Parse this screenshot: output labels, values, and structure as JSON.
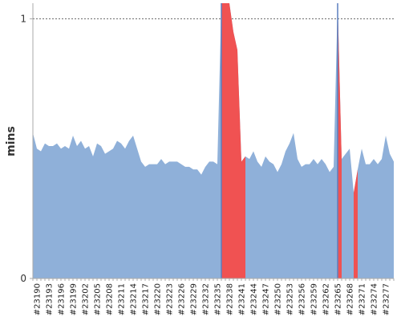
{
  "chart_data": {
    "type": "area",
    "ylabel": "mins",
    "xlabel": "",
    "title": "",
    "ylim": [
      0,
      1.06
    ],
    "y_ticks": [
      {
        "value": 0,
        "label": "0"
      },
      {
        "value": 1,
        "label": "1"
      }
    ],
    "grid": "dashed line at y=1",
    "colors": {
      "base": "#8fb0d9",
      "highlight": "#f05252",
      "spike_line": "#5b7fbf",
      "axis": "#aaaaaa",
      "grid": "#666666"
    },
    "x_first": 23189,
    "x_last": 23279,
    "x_tick_labels": [
      "#23190",
      "#23193",
      "#23196",
      "#23199",
      "#23202",
      "#23205",
      "#23208",
      "#23211",
      "#23214",
      "#23217",
      "#23220",
      "#23223",
      "#23226",
      "#23229",
      "#23232",
      "#23235",
      "#23238",
      "#23241",
      "#23244",
      "#23247",
      "#23250",
      "#23253",
      "#23256",
      "#23259",
      "#23262",
      "#23265",
      "#23268",
      "#23271",
      "#23274",
      "#23277"
    ],
    "series": [
      {
        "x": [
          23189,
          23190,
          23191,
          23192,
          23193,
          23194,
          23195,
          23196,
          23197,
          23198,
          23199,
          23200,
          23201,
          23202,
          23203,
          23204,
          23205,
          23206,
          23207,
          23208,
          23209,
          23210,
          23211,
          23212,
          23213,
          23214,
          23215,
          23216,
          23217,
          23218,
          23219,
          23220,
          23221,
          23222,
          23223,
          23224,
          23225,
          23226,
          23227,
          23228,
          23229,
          23230,
          23231,
          23232,
          23233,
          23234,
          23235,
          23236,
          23237,
          23238,
          23239,
          23240,
          23241,
          23242,
          23243,
          23244,
          23245,
          23246,
          23247,
          23248,
          23249,
          23250,
          23251,
          23252,
          23253,
          23254,
          23255,
          23256,
          23257,
          23258,
          23259,
          23260,
          23261,
          23262,
          23263,
          23264,
          23265,
          23266,
          23267,
          23268,
          23269,
          23270,
          23271,
          23272,
          23273,
          23274,
          23275,
          23276,
          23277,
          23278,
          23279
        ],
        "values": [
          0.56,
          0.5,
          0.49,
          0.52,
          0.51,
          0.51,
          0.52,
          0.5,
          0.51,
          0.5,
          0.55,
          0.51,
          0.53,
          0.5,
          0.51,
          0.47,
          0.52,
          0.51,
          0.48,
          0.49,
          0.5,
          0.53,
          0.52,
          0.5,
          0.53,
          0.55,
          0.5,
          0.45,
          0.43,
          0.44,
          0.44,
          0.44,
          0.46,
          0.44,
          0.45,
          0.45,
          0.45,
          0.44,
          0.43,
          0.43,
          0.42,
          0.42,
          0.4,
          0.43,
          0.45,
          0.45,
          0.44,
          1.08,
          1.08,
          1.08,
          0.95,
          0.88,
          0.45,
          0.47,
          0.46,
          0.49,
          0.45,
          0.43,
          0.47,
          0.45,
          0.44,
          0.41,
          0.44,
          0.49,
          0.52,
          0.56,
          0.46,
          0.43,
          0.44,
          0.44,
          0.46,
          0.44,
          0.46,
          0.44,
          0.41,
          0.43,
          1.08,
          0.46,
          0.48,
          0.5,
          0.33,
          0.42,
          0.5,
          0.44,
          0.44,
          0.46,
          0.44,
          0.46,
          0.55,
          0.48,
          0.45
        ],
        "highlight_ranges": [
          [
            23236,
            23242
          ],
          [
            23265,
            23266
          ],
          [
            23269,
            23270
          ]
        ],
        "spike_lines": [
          23236,
          23265
        ]
      }
    ]
  }
}
